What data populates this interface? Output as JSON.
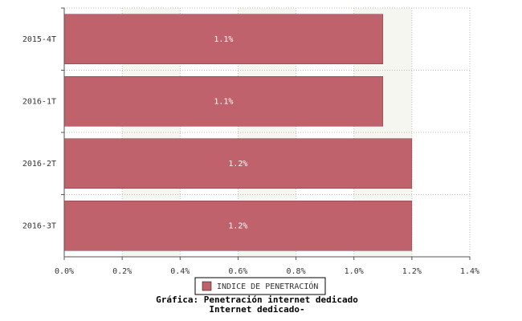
{
  "chart_data": {
    "type": "bar",
    "orientation": "horizontal",
    "title": "Gráfica: Penetración internet dedicado",
    "subtitle": "Internet dedicado-",
    "categories": [
      "2015-4T",
      "2016-1T",
      "2016-2T",
      "2016-3T"
    ],
    "series": [
      {
        "name": "INDICE DE PENETRACIÓN",
        "color": "#c0626b",
        "values": [
          1.1,
          1.1,
          1.2,
          1.2
        ],
        "value_labels": [
          "1.1%",
          "1.1%",
          "1.2%",
          "1.2%"
        ]
      }
    ],
    "xlim": [
      0,
      1.4
    ],
    "xticks": [
      {
        "value": 0,
        "label": "0.0%"
      },
      {
        "value": 0.2,
        "label": "0.2%"
      },
      {
        "value": 0.4,
        "label": "0.4%"
      },
      {
        "value": 0.6,
        "label": "0.6%"
      },
      {
        "value": 0.8,
        "label": "0.8%"
      },
      {
        "value": 1.0,
        "label": "1.0%"
      },
      {
        "value": 1.2,
        "label": "1.2%"
      },
      {
        "value": 1.4,
        "label": "1.4%"
      }
    ],
    "grid": true,
    "legend": "bottom"
  }
}
